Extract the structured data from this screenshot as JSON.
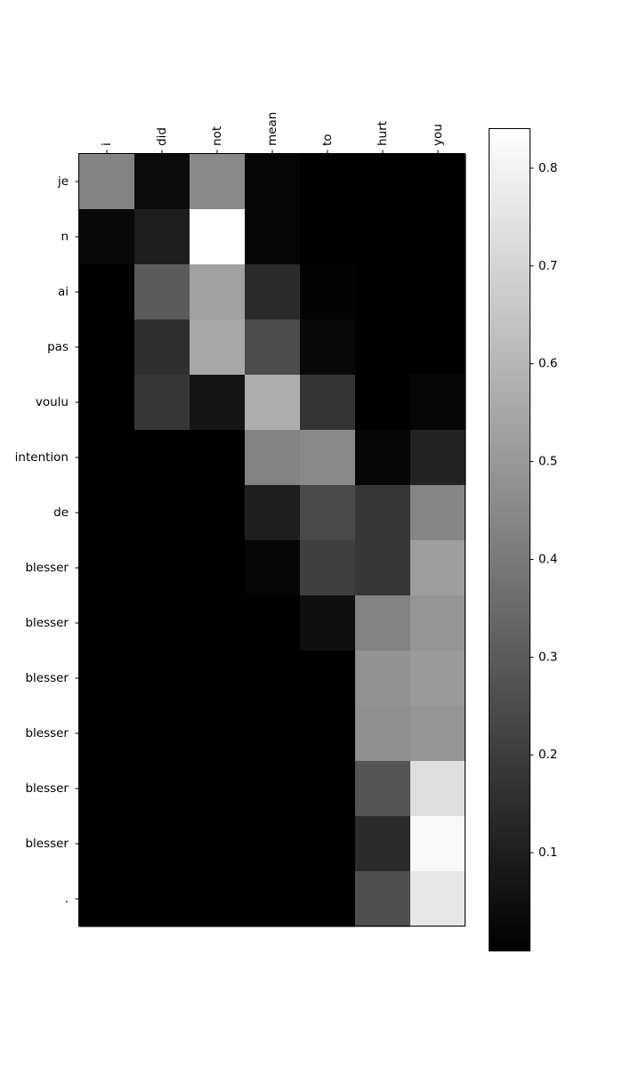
{
  "chart_data": {
    "type": "heatmap",
    "colormap": "gray",
    "x_labels": [
      "i",
      "did",
      "not",
      "mean",
      "to",
      "hurt",
      "you"
    ],
    "y_labels": [
      "je",
      "n",
      "ai",
      "pas",
      "voulu",
      "intention",
      "de",
      "blesser",
      "blesser",
      "blesser",
      "blesser",
      "blesser",
      "blesser",
      "."
    ],
    "values": [
      [
        0.43,
        0.04,
        0.45,
        0.02,
        0.0,
        0.0,
        0.0
      ],
      [
        0.03,
        0.1,
        0.84,
        0.02,
        0.0,
        0.0,
        0.0
      ],
      [
        0.0,
        0.3,
        0.53,
        0.14,
        0.01,
        0.0,
        0.0
      ],
      [
        0.0,
        0.15,
        0.55,
        0.25,
        0.03,
        0.0,
        0.0
      ],
      [
        0.0,
        0.18,
        0.07,
        0.57,
        0.17,
        0.0,
        0.02
      ],
      [
        0.0,
        0.0,
        0.0,
        0.43,
        0.45,
        0.02,
        0.12
      ],
      [
        0.0,
        0.0,
        0.0,
        0.1,
        0.24,
        0.18,
        0.44
      ],
      [
        0.0,
        0.0,
        0.0,
        0.02,
        0.21,
        0.18,
        0.52
      ],
      [
        0.0,
        0.0,
        0.0,
        0.0,
        0.05,
        0.43,
        0.49
      ],
      [
        0.0,
        0.0,
        0.0,
        0.0,
        0.0,
        0.48,
        0.51
      ],
      [
        0.0,
        0.0,
        0.0,
        0.0,
        0.0,
        0.47,
        0.49
      ],
      [
        0.0,
        0.0,
        0.0,
        0.0,
        0.0,
        0.28,
        0.73
      ],
      [
        0.0,
        0.0,
        0.0,
        0.0,
        0.0,
        0.14,
        0.82
      ],
      [
        0.0,
        0.0,
        0.0,
        0.0,
        0.0,
        0.26,
        0.76
      ]
    ],
    "colorbar": {
      "min": 0.0,
      "max": 0.84,
      "ticks": [
        0.1,
        0.2,
        0.3,
        0.4,
        0.5,
        0.6,
        0.7,
        0.8
      ],
      "tick_labels": [
        "0.1",
        "0.2",
        "0.3",
        "0.4",
        "0.5",
        "0.6",
        "0.7",
        "0.8"
      ]
    },
    "x_tick_position": "top",
    "x_tick_rotation": "vertical",
    "grid": false
  }
}
